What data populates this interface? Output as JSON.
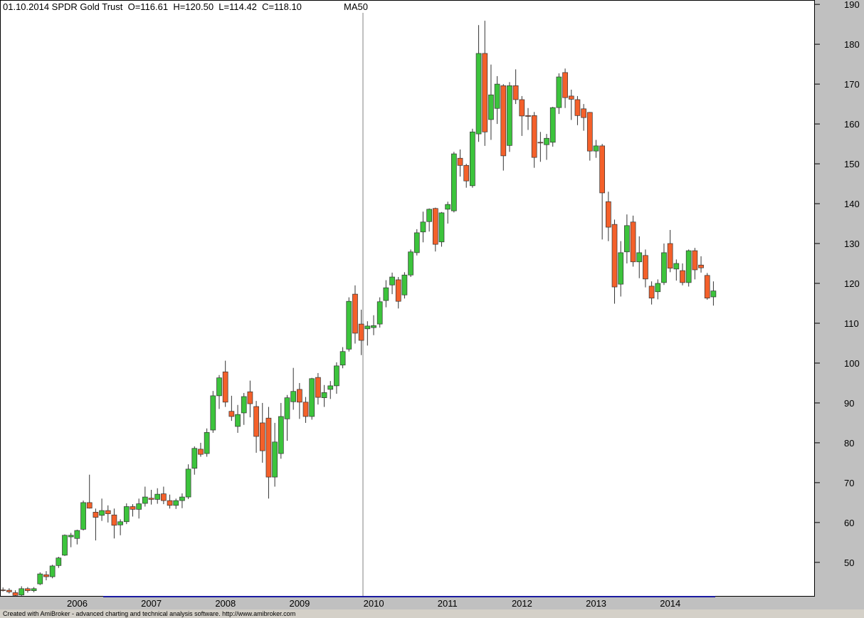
{
  "chart_data": {
    "type": "candlestick",
    "title": "01.10.2014 SPDR Gold Trust  O=116.61  H=120.50  L=114.42  C=118.10",
    "indicator": "MA50",
    "footer": "Created with AmiBroker - advanced charting and technical analysis software. http://www.amibroker.com",
    "up_color": "#3cc43c",
    "down_color": "#f4602a",
    "categories": [
      null,
      null,
      null,
      null,
      null,
      null,
      null,
      null,
      null,
      null,
      "2006",
      null,
      null,
      null,
      null,
      null,
      null,
      null,
      null,
      null,
      null,
      null,
      "2007",
      null,
      null,
      null,
      null,
      null,
      null,
      null,
      null,
      null,
      null,
      null,
      "2008",
      null,
      null,
      null,
      null,
      null,
      null,
      null,
      null,
      null,
      null,
      null,
      "2009",
      null,
      null,
      null,
      null,
      null,
      null,
      null,
      null,
      null,
      null,
      null,
      "2010",
      null,
      null,
      null,
      null,
      null,
      null,
      null,
      null,
      null,
      null,
      null,
      "2011",
      null,
      null,
      null,
      null,
      null,
      null,
      null,
      null,
      null,
      null,
      null,
      "2012",
      null,
      null,
      null,
      null,
      null,
      null,
      null,
      null,
      null,
      null,
      null,
      "2013",
      null,
      null,
      null,
      null,
      null,
      null,
      null,
      null,
      null,
      null,
      null,
      "2014",
      null,
      null,
      null,
      null,
      null,
      null,
      null,
      null,
      null
    ],
    "open": [
      43.1,
      43.0,
      42.4,
      41.8,
      43.4,
      42.9,
      44.6,
      46.9,
      46.4,
      49.2,
      51.8,
      56.4,
      56.0,
      58.3,
      65.0,
      62.6,
      61.8,
      63.0,
      61.9,
      59.4,
      60.2,
      64.0,
      63.3,
      64.8,
      66.1,
      65.8,
      67.2,
      65.5,
      64.3,
      65.5,
      66.4,
      73.6,
      78.4,
      77.3,
      83.2,
      91.8,
      97.8,
      87.9,
      84.1,
      87.5,
      92.8,
      89.1,
      85.0,
      86.2,
      71.4,
      77.3,
      86.0,
      90.3,
      93.4,
      90.2,
      86.6,
      96.4,
      91.3,
      93.4,
      94.3,
      99.5,
      103.5,
      117.3,
      109.8,
      108.6,
      108.9,
      109.8,
      115.7,
      119.6,
      120.9,
      117.1,
      122.1,
      127.7,
      132.9,
      135.5,
      138.8,
      130.4,
      138.6,
      138.2,
      151.4,
      149.6,
      144.5,
      157.5,
      177.7,
      161.1,
      163.9,
      169.6,
      154.6,
      169.6,
      166.1,
      162.1,
      162.1,
      155.4,
      154.8,
      155.4,
      164.1,
      172.9,
      167.0,
      166.1,
      163.8,
      162.9,
      153.2,
      154.5,
      140.5,
      134.8,
      119.8,
      127.9,
      135.4,
      125.4,
      127.0,
      119.3,
      117.9,
      120.2,
      130.0,
      123.6,
      123.2,
      120.2,
      128.2,
      124.6,
      122.0,
      116.61
    ],
    "high": [
      43.7,
      43.5,
      43.0,
      44.0,
      43.8,
      43.8,
      47.5,
      47.8,
      49.4,
      51.4,
      57.0,
      57.4,
      58.2,
      65.5,
      72.0,
      63.5,
      66.0,
      64.3,
      63.5,
      60.8,
      64.8,
      64.6,
      66.0,
      69.0,
      68.2,
      68.6,
      69.0,
      67.0,
      66.0,
      67.3,
      74.6,
      79.1,
      80.0,
      83.6,
      93.0,
      97.0,
      100.6,
      91.8,
      89.5,
      92.5,
      95.6,
      90.5,
      90.0,
      89.0,
      85.0,
      90.0,
      92.0,
      98.8,
      95.0,
      91.5,
      96.3,
      97.5,
      94.5,
      95.5,
      100.2,
      104.0,
      116.5,
      119.5,
      113.4,
      110.5,
      112.0,
      116.5,
      120.8,
      122.7,
      121.6,
      122.8,
      128.5,
      133.6,
      138.0,
      138.8,
      139.0,
      137.9,
      140.5,
      153.0,
      153.6,
      150.0,
      158.8,
      184.8,
      185.9,
      174.9,
      172.0,
      170.0,
      170.5,
      173.7,
      167.0,
      164.0,
      163.0,
      158.0,
      157.5,
      164.3,
      172.7,
      173.9,
      168.6,
      167.0,
      165.0,
      163.0,
      156.0,
      155.0,
      143.0,
      136.0,
      130.6,
      137.3,
      137.0,
      131.8,
      128.5,
      120.5,
      121.0,
      130.0,
      133.4,
      126.0,
      125.0,
      128.5,
      128.9,
      126.8,
      122.6,
      120.5
    ],
    "low": [
      42.7,
      42.2,
      41.5,
      41.6,
      42.4,
      42.5,
      44.3,
      45.5,
      46.0,
      48.6,
      51.6,
      53.8,
      54.5,
      58.0,
      63.5,
      55.5,
      60.4,
      60.0,
      56.0,
      56.8,
      59.6,
      61.5,
      61.0,
      64.0,
      64.5,
      64.7,
      64.6,
      63.5,
      63.4,
      63.6,
      65.9,
      72.0,
      76.5,
      76.5,
      82.5,
      88.5,
      89.0,
      85.5,
      82.5,
      84.5,
      86.4,
      77.5,
      75.0,
      66.0,
      69.0,
      76.0,
      80.5,
      88.3,
      86.0,
      85.0,
      85.8,
      89.6,
      89.0,
      91.0,
      92.3,
      98.7,
      102.9,
      104.9,
      102.0,
      104.4,
      107.0,
      108.9,
      114.0,
      117.3,
      113.7,
      116.2,
      121.6,
      127.0,
      130.3,
      133.0,
      128.0,
      129.2,
      135.0,
      137.8,
      146.8,
      144.0,
      144.0,
      155.5,
      154.5,
      156.0,
      160.0,
      148.3,
      153.0,
      165.0,
      157.0,
      158.5,
      149.0,
      150.5,
      151.0,
      154.3,
      162.5,
      164.0,
      161.0,
      159.7,
      158.3,
      150.8,
      151.5,
      131.0,
      130.6,
      114.9,
      116.7,
      125.0,
      124.2,
      121.3,
      119.0,
      114.7,
      116.0,
      119.6,
      122.8,
      120.7,
      119.5,
      119.2,
      121.0,
      122.7,
      115.9,
      114.42
    ],
    "close": [
      43.0,
      42.6,
      41.7,
      43.4,
      42.9,
      43.4,
      47.1,
      46.4,
      49.1,
      51.1,
      56.8,
      56.8,
      58.0,
      65.0,
      63.6,
      61.3,
      63.0,
      62.2,
      59.3,
      60.2,
      64.0,
      63.3,
      64.7,
      66.4,
      65.8,
      67.1,
      65.5,
      64.3,
      65.5,
      66.4,
      73.4,
      78.6,
      77.1,
      82.6,
      91.8,
      96.3,
      90.2,
      86.6,
      87.1,
      91.6,
      89.8,
      81.6,
      78.0,
      71.4,
      80.2,
      86.6,
      91.3,
      92.9,
      90.2,
      86.6,
      96.1,
      91.4,
      92.6,
      94.3,
      99.3,
      102.9,
      115.5,
      107.5,
      105.7,
      109.3,
      109.4,
      115.4,
      118.9,
      121.6,
      115.5,
      122.1,
      127.9,
      132.7,
      135.4,
      138.6,
      129.8,
      137.7,
      139.8,
      152.5,
      149.6,
      145.7,
      158.0,
      177.7,
      158.0,
      167.3,
      170.0,
      152.0,
      169.6,
      166.1,
      162.0,
      161.9,
      151.6,
      155.3,
      156.4,
      164.1,
      171.8,
      166.6,
      166.2,
      162.1,
      161.6,
      153.2,
      154.5,
      142.7,
      134.1,
      119.1,
      127.7,
      134.5,
      125.4,
      127.7,
      121.1,
      116.3,
      120.0,
      127.7,
      123.8,
      125.0,
      120.2,
      128.2,
      123.4,
      123.9,
      116.3,
      118.1
    ],
    "ylim": [
      41.4,
      191.1
    ],
    "yticks": [
      50,
      60,
      70,
      80,
      90,
      100,
      110,
      120,
      130,
      140,
      150,
      160,
      170,
      180,
      190
    ]
  }
}
